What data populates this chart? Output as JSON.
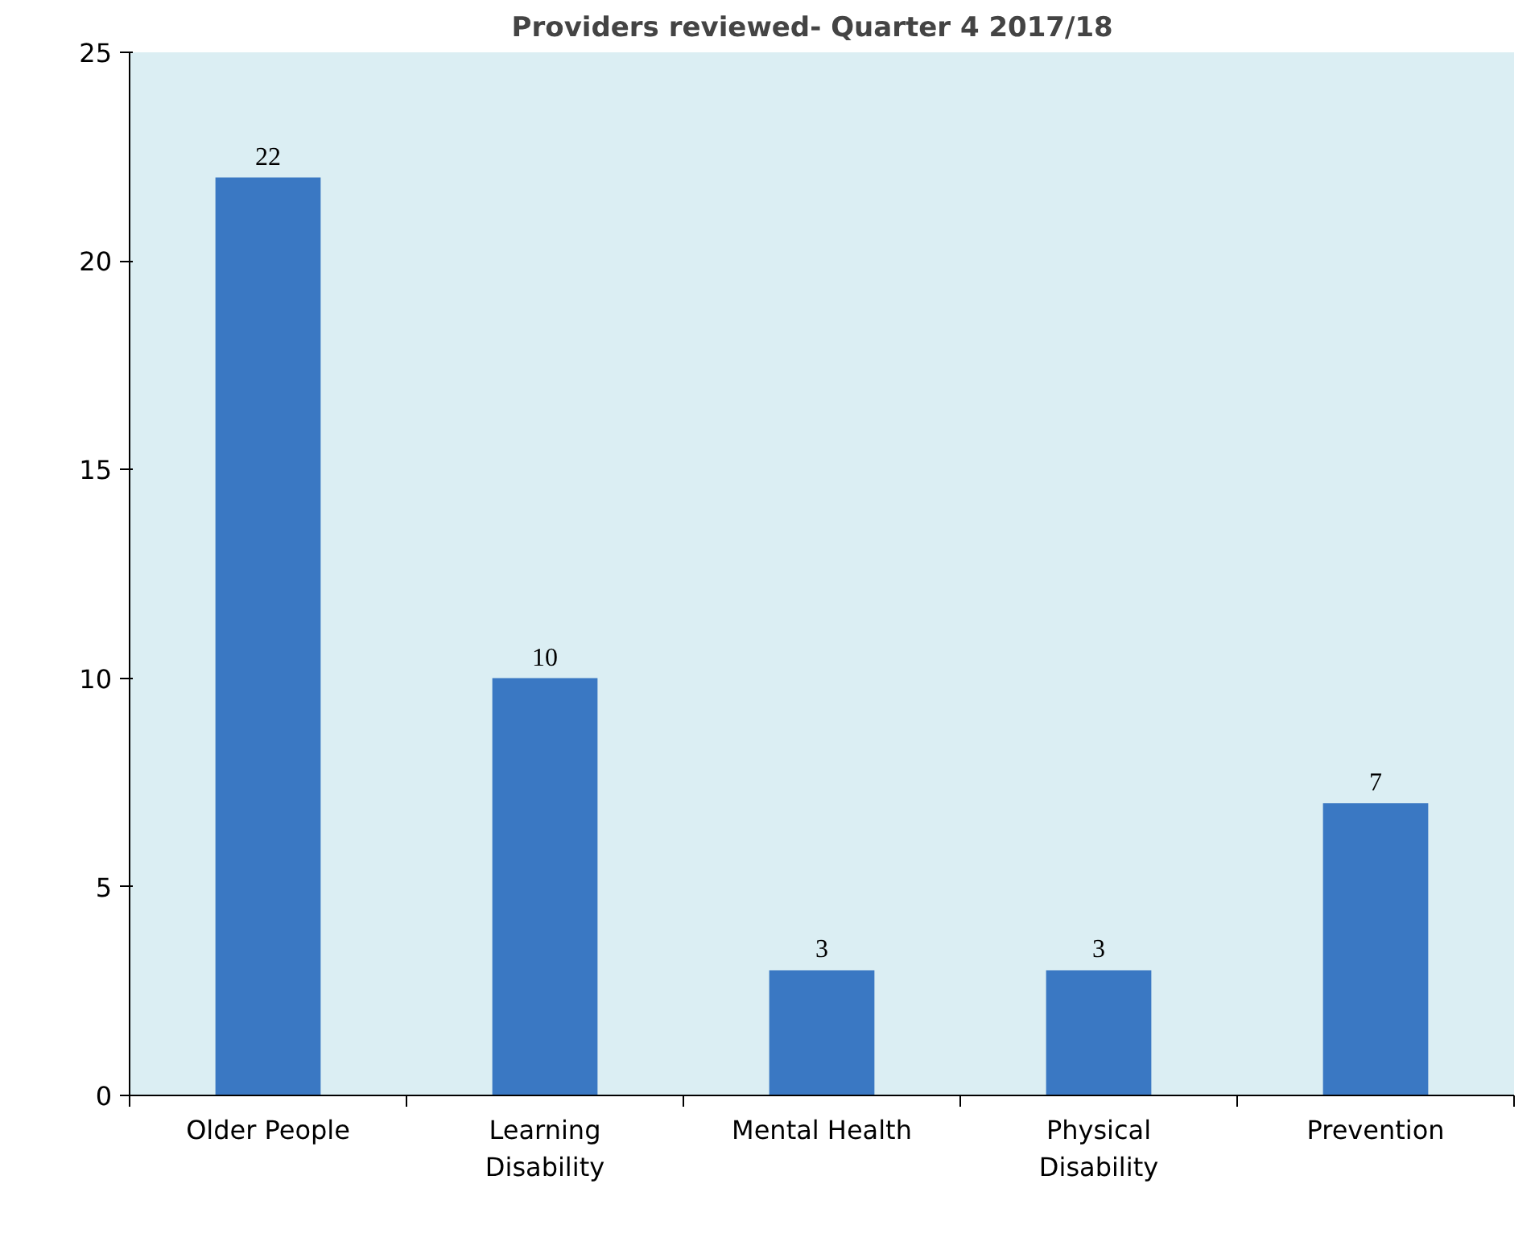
{
  "chart_data": {
    "type": "bar",
    "title": "Providers reviewed- Quarter  4  2017/18",
    "categories": [
      "Older People",
      "Learning\nDisability",
      "Mental Health",
      "Physical\nDisability",
      "Prevention"
    ],
    "values": [
      22,
      10,
      3,
      3,
      7
    ],
    "color": "#3a78c3",
    "ylim": [
      0,
      25
    ],
    "yticks": [
      0,
      5,
      10,
      15,
      20,
      25
    ],
    "grid": false,
    "data_labels": true
  }
}
